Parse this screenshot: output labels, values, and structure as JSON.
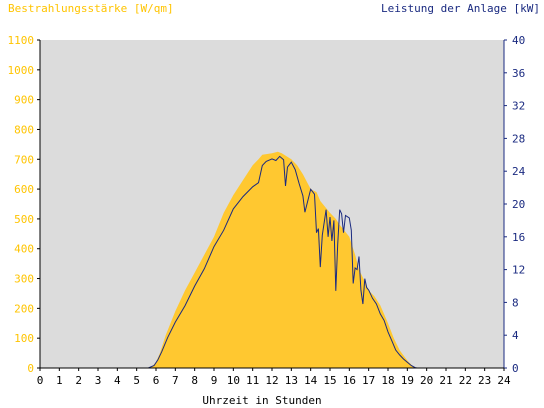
{
  "chart_data": {
    "type": "area",
    "title_left": "Bestrahlungsstärke [W/qm]",
    "title_right": "Leistung der Anlage [kW]",
    "xlabel": "Uhrzeit in Stunden",
    "x_ticks": [
      "0",
      "1",
      "2",
      "3",
      "4",
      "5",
      "6",
      "7",
      "8",
      "9",
      "10",
      "11",
      "12",
      "13",
      "14",
      "15",
      "16",
      "17",
      "18",
      "19",
      "20",
      "21",
      "22",
      "23",
      "24"
    ],
    "y_left_ticks": [
      "0",
      "100",
      "200",
      "300",
      "400",
      "500",
      "600",
      "700",
      "800",
      "900",
      "1000",
      "1100"
    ],
    "y_right_ticks": [
      "0",
      "4",
      "8",
      "12",
      "16",
      "20",
      "24",
      "28",
      "32",
      "36",
      "40"
    ],
    "xlim": [
      0,
      24
    ],
    "ylim_left": [
      0,
      1100
    ],
    "ylim_right": [
      0,
      40
    ],
    "grid": false,
    "colors": {
      "plot_background": "#dcdcdc",
      "irradiance_fill": "#ffc830",
      "power_line": "#1a2a80",
      "left_axis_text": "#ffc400",
      "right_axis_text": "#1a2a80"
    },
    "series": [
      {
        "kind": "area",
        "axis": "left",
        "unit": "W/qm",
        "points": [
          [
            0,
            0
          ],
          [
            5.5,
            0
          ],
          [
            5.8,
            5
          ],
          [
            6.0,
            20
          ],
          [
            6.2,
            50
          ],
          [
            6.5,
            110
          ],
          [
            7.0,
            190
          ],
          [
            7.5,
            260
          ],
          [
            8.0,
            320
          ],
          [
            8.5,
            380
          ],
          [
            9.0,
            440
          ],
          [
            9.5,
            520
          ],
          [
            10.0,
            580
          ],
          [
            10.5,
            630
          ],
          [
            11.0,
            680
          ],
          [
            11.3,
            700
          ],
          [
            11.5,
            715
          ],
          [
            12.0,
            720
          ],
          [
            12.3,
            725
          ],
          [
            12.5,
            720
          ],
          [
            13.0,
            700
          ],
          [
            13.3,
            680
          ],
          [
            13.6,
            650
          ],
          [
            14.0,
            600
          ],
          [
            14.3,
            590
          ],
          [
            14.5,
            560
          ],
          [
            15.0,
            520
          ],
          [
            15.3,
            500
          ],
          [
            15.5,
            480
          ],
          [
            16.0,
            440
          ],
          [
            16.3,
            380
          ],
          [
            16.5,
            330
          ],
          [
            16.8,
            290
          ],
          [
            17.0,
            260
          ],
          [
            17.3,
            240
          ],
          [
            17.6,
            210
          ],
          [
            18.0,
            150
          ],
          [
            18.3,
            100
          ],
          [
            18.6,
            60
          ],
          [
            19.0,
            25
          ],
          [
            19.3,
            5
          ],
          [
            19.5,
            0
          ],
          [
            24,
            0
          ]
        ]
      },
      {
        "kind": "line",
        "axis": "right",
        "unit": "kW",
        "points": [
          [
            0,
            0
          ],
          [
            5.6,
            0
          ],
          [
            5.9,
            0.3
          ],
          [
            6.1,
            1.0
          ],
          [
            6.3,
            2.0
          ],
          [
            6.6,
            3.7
          ],
          [
            7.0,
            5.6
          ],
          [
            7.5,
            7.6
          ],
          [
            8.0,
            10.0
          ],
          [
            8.5,
            12.1
          ],
          [
            9.0,
            14.8
          ],
          [
            9.5,
            16.8
          ],
          [
            10.0,
            19.4
          ],
          [
            10.5,
            20.9
          ],
          [
            11.0,
            22.1
          ],
          [
            11.3,
            22.6
          ],
          [
            11.5,
            24.7
          ],
          [
            11.7,
            25.2
          ],
          [
            12.0,
            25.5
          ],
          [
            12.2,
            25.3
          ],
          [
            12.4,
            25.8
          ],
          [
            12.6,
            25.4
          ],
          [
            12.7,
            22.2
          ],
          [
            12.8,
            24.5
          ],
          [
            13.0,
            25.1
          ],
          [
            13.2,
            24.2
          ],
          [
            13.4,
            22.5
          ],
          [
            13.6,
            21.0
          ],
          [
            13.7,
            19.0
          ],
          [
            14.0,
            21.8
          ],
          [
            14.2,
            21.2
          ],
          [
            14.3,
            16.5
          ],
          [
            14.4,
            17.0
          ],
          [
            14.5,
            12.3
          ],
          [
            14.6,
            16.2
          ],
          [
            14.8,
            19.3
          ],
          [
            14.9,
            16.0
          ],
          [
            15.0,
            18.4
          ],
          [
            15.1,
            15.5
          ],
          [
            15.2,
            18.0
          ],
          [
            15.3,
            9.4
          ],
          [
            15.4,
            15.1
          ],
          [
            15.5,
            19.3
          ],
          [
            15.6,
            18.8
          ],
          [
            15.7,
            16.5
          ],
          [
            15.8,
            18.6
          ],
          [
            16.0,
            18.3
          ],
          [
            16.1,
            16.8
          ],
          [
            16.2,
            10.3
          ],
          [
            16.3,
            12.2
          ],
          [
            16.4,
            12.0
          ],
          [
            16.5,
            13.6
          ],
          [
            16.6,
            9.5
          ],
          [
            16.7,
            7.8
          ],
          [
            16.8,
            10.9
          ],
          [
            16.9,
            9.8
          ],
          [
            17.0,
            9.5
          ],
          [
            17.2,
            8.5
          ],
          [
            17.4,
            7.8
          ],
          [
            17.6,
            6.6
          ],
          [
            17.8,
            5.8
          ],
          [
            18.0,
            4.4
          ],
          [
            18.2,
            3.3
          ],
          [
            18.4,
            2.2
          ],
          [
            18.6,
            1.6
          ],
          [
            18.8,
            1.1
          ],
          [
            19.0,
            0.7
          ],
          [
            19.2,
            0.3
          ],
          [
            19.4,
            0.05
          ],
          [
            19.5,
            0
          ],
          [
            24,
            0
          ]
        ]
      }
    ]
  }
}
